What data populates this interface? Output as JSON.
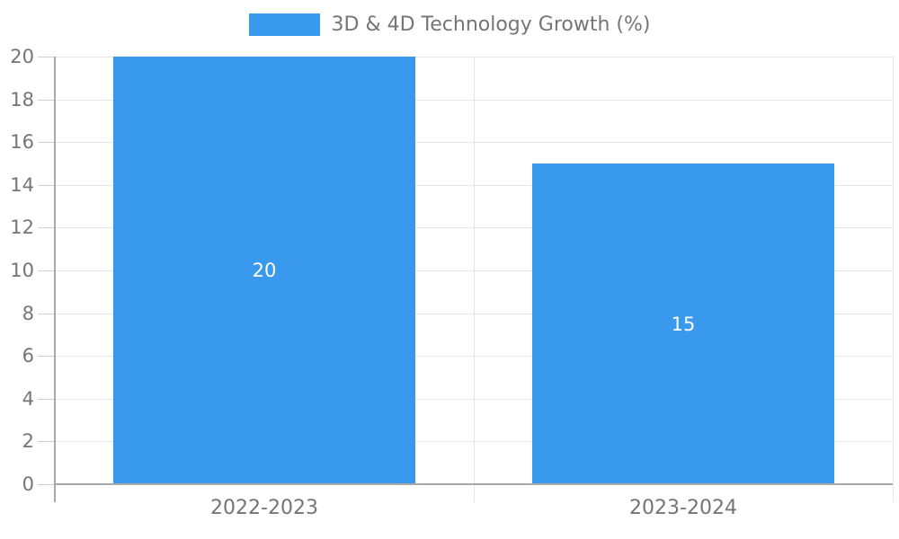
{
  "chart_data": {
    "type": "bar",
    "title": "",
    "legend": {
      "label": "3D & 4D Technology Growth (%)",
      "position": "top-center"
    },
    "categories": [
      "2022-2023",
      "2023-2024"
    ],
    "series": [
      {
        "name": "3D & 4D Technology Growth (%)",
        "values": [
          20,
          15
        ]
      }
    ],
    "value_labels": [
      "20",
      "15"
    ],
    "xlabel": "",
    "ylabel": "",
    "ylim": [
      0,
      20
    ],
    "ytick_step": 2,
    "yticks": [
      0,
      2,
      4,
      6,
      8,
      10,
      12,
      14,
      16,
      18,
      20
    ],
    "grid": true,
    "colors": {
      "bar": "#3999EC",
      "value_label": "#FFFFFF",
      "text": "#757575",
      "gridline": "#E6E6E6",
      "tick": "#CFCFCF",
      "axis": "#A8A8A8"
    }
  }
}
